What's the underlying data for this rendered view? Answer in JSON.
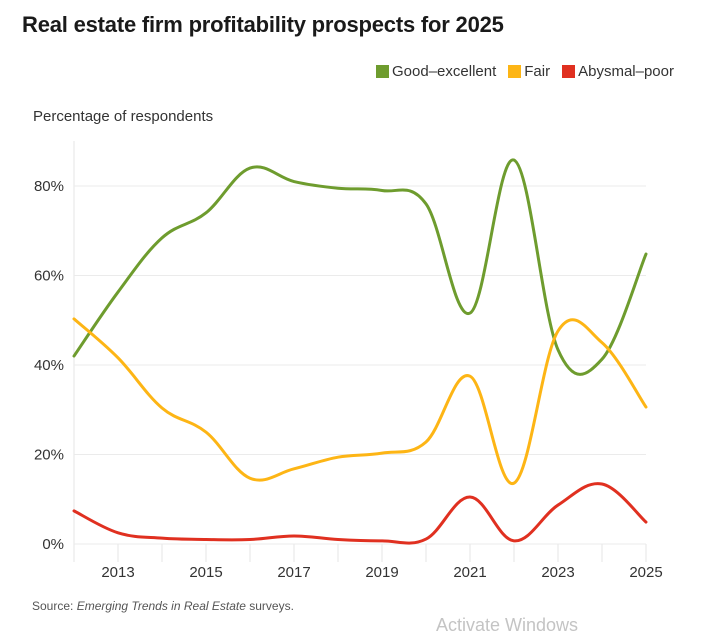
{
  "chart_data": {
    "type": "line",
    "title": "Real estate firm profitability prospects for 2025",
    "ylabel": "Percentage of respondents",
    "xlabel": "",
    "x": [
      2012,
      2013,
      2014,
      2015,
      2016,
      2017,
      2018,
      2019,
      2020,
      2021,
      2022,
      2023,
      2024,
      2025
    ],
    "xticks": [
      "2013",
      "2015",
      "2017",
      "2019",
      "2021",
      "2023",
      "2025"
    ],
    "xtick_values": [
      2013,
      2015,
      2017,
      2019,
      2021,
      2023,
      2025
    ],
    "yticks": [
      "0%",
      "20%",
      "40%",
      "60%",
      "80%"
    ],
    "ytick_values": [
      0,
      20,
      40,
      60,
      80
    ],
    "ylim": [
      0,
      90
    ],
    "xlim": [
      2012,
      2025
    ],
    "grid": "horizontal",
    "legend_position": "top-right",
    "series": [
      {
        "name": "Good–excellent",
        "color": "#6e9c2e",
        "values": [
          42.0,
          56.3,
          68.4,
          74.0,
          84.0,
          81.0,
          79.5,
          79.0,
          76.0,
          51.6,
          85.8,
          43.4,
          41.3,
          64.8
        ]
      },
      {
        "name": "Fair",
        "color": "#fdb515",
        "values": [
          50.3,
          41.6,
          30.4,
          25.0,
          14.7,
          16.8,
          19.4,
          20.3,
          22.8,
          37.5,
          13.6,
          47.6,
          45.0,
          30.6
        ]
      },
      {
        "name": "Abysmal–poor",
        "color": "#e03020",
        "values": [
          7.4,
          2.5,
          1.3,
          1.0,
          1.0,
          1.8,
          1.0,
          0.7,
          1.1,
          10.5,
          0.7,
          8.7,
          13.4,
          4.9
        ]
      }
    ]
  },
  "legend": {
    "items": [
      {
        "label": "Good–excellent",
        "color": "#6e9c2e"
      },
      {
        "label": "Fair",
        "color": "#fdb515"
      },
      {
        "label": "Abysmal–poor",
        "color": "#e03020"
      }
    ]
  },
  "footer": {
    "source_prefix": "Source: ",
    "source_italic": "Emerging Trends in Real Estate",
    "source_suffix": " surveys."
  },
  "watermark": "Activate Windows"
}
